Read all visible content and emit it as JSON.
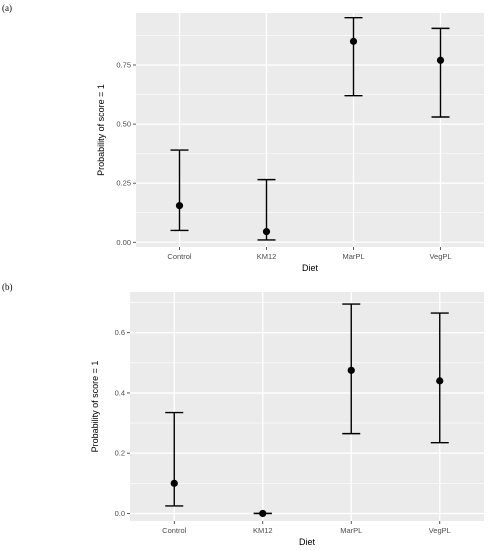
{
  "figure": {
    "panel_labels": [
      "(a)",
      "(b)"
    ]
  },
  "chart_data": [
    {
      "type": "scatter",
      "panel": "(a)",
      "categories": [
        "Control",
        "KM12",
        "MarPL",
        "VegPL"
      ],
      "values": [
        0.155,
        0.045,
        0.85,
        0.77
      ],
      "lower": [
        0.05,
        0.01,
        0.62,
        0.53
      ],
      "upper": [
        0.39,
        0.265,
        0.95,
        0.905
      ],
      "xlabel": "Diet",
      "ylabel": "Probability of score = 1",
      "ylim": [
        -0.02,
        0.97
      ],
      "yticks": [
        0.0,
        0.25,
        0.5,
        0.75
      ],
      "ytick_labels": [
        "0.00",
        "0.25",
        "0.50",
        "0.75"
      ],
      "grid": true,
      "colors": {
        "panel_bg": "#ebebeb",
        "grid": "#ffffff",
        "marks": "#000000"
      }
    },
    {
      "type": "scatter",
      "panel": "(b)",
      "categories": [
        "Control",
        "KM12",
        "MarPL",
        "VegPL"
      ],
      "values": [
        0.1,
        0.0,
        0.475,
        0.44
      ],
      "lower": [
        0.025,
        0.0,
        0.265,
        0.235
      ],
      "upper": [
        0.335,
        0.0,
        0.695,
        0.665
      ],
      "xlabel": "Diet",
      "ylabel": "Probability of score = 1",
      "ylim": [
        -0.025,
        0.735
      ],
      "yticks": [
        0.0,
        0.2,
        0.4,
        0.6
      ],
      "ytick_labels": [
        "0.0",
        "0.2",
        "0.4",
        "0.6"
      ],
      "grid": true,
      "colors": {
        "panel_bg": "#ebebeb",
        "grid": "#ffffff",
        "marks": "#000000"
      }
    }
  ]
}
